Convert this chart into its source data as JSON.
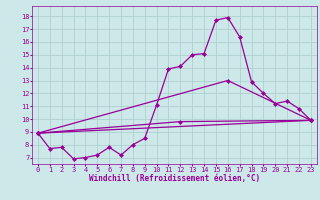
{
  "xlabel": "Windchill (Refroidissement éolien,°C)",
  "background_color": "#cce8e8",
  "line_color": "#990099",
  "grid_color": "#aacccc",
  "xlim": [
    -0.5,
    23.5
  ],
  "ylim": [
    6.5,
    18.8
  ],
  "xticks": [
    0,
    1,
    2,
    3,
    4,
    5,
    6,
    7,
    8,
    9,
    10,
    11,
    12,
    13,
    14,
    15,
    16,
    17,
    18,
    19,
    20,
    21,
    22,
    23
  ],
  "yticks": [
    7,
    8,
    9,
    10,
    11,
    12,
    13,
    14,
    15,
    16,
    17,
    18
  ],
  "series": [
    [
      0,
      8.9
    ],
    [
      1,
      7.7
    ],
    [
      2,
      7.8
    ],
    [
      3,
      6.9
    ],
    [
      4,
      7.0
    ],
    [
      5,
      7.2
    ],
    [
      6,
      7.8
    ],
    [
      7,
      7.2
    ],
    [
      8,
      8.0
    ],
    [
      9,
      8.5
    ],
    [
      10,
      11.1
    ],
    [
      11,
      13.9
    ],
    [
      12,
      14.1
    ],
    [
      13,
      15.0
    ],
    [
      14,
      15.1
    ],
    [
      15,
      17.7
    ],
    [
      16,
      17.9
    ],
    [
      17,
      16.4
    ],
    [
      18,
      12.9
    ],
    [
      19,
      12.0
    ],
    [
      20,
      11.2
    ],
    [
      21,
      11.4
    ],
    [
      22,
      10.8
    ],
    [
      23,
      9.9
    ]
  ],
  "line2": [
    [
      0,
      8.9
    ],
    [
      23,
      9.9
    ]
  ],
  "line3": [
    [
      0,
      8.9
    ],
    [
      16,
      13.0
    ],
    [
      23,
      9.9
    ]
  ],
  "line4": [
    [
      0,
      8.9
    ],
    [
      12,
      9.8
    ],
    [
      23,
      9.9
    ]
  ],
  "marker": "D",
  "markersize": 2.0,
  "linewidth": 0.9,
  "tick_fontsize": 5.0,
  "label_fontsize": 5.5
}
